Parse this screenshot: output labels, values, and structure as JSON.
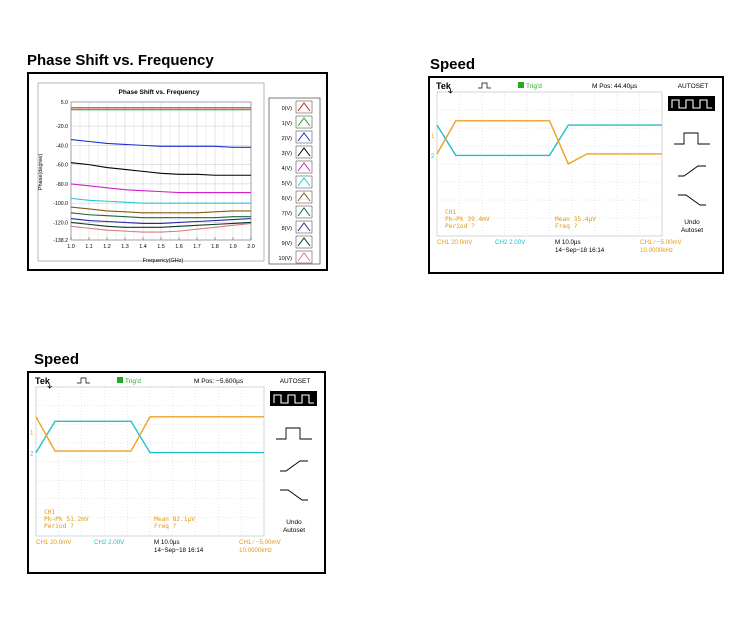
{
  "panels": {
    "phase": {
      "heading": "Phase Shift vs. Frequency"
    },
    "speed1": {
      "heading": "Speed"
    },
    "speed2": {
      "heading": "Speed"
    }
  },
  "chart_data": [
    {
      "type": "line",
      "title": "Phase Shift vs. Frequency",
      "xlabel": "Frequency(GHz)",
      "ylabel": "Phase(degree)",
      "xlim": [
        1.0,
        2.0
      ],
      "ylim": [
        -138.2,
        5.0
      ],
      "xticks": [
        "1.0",
        "1.1",
        "1.2",
        "1.3",
        "1.4",
        "1.5",
        "1.6",
        "1.7",
        "1.8",
        "1.9",
        "2.0"
      ],
      "yticks": [
        "5.0",
        "-20.0",
        "-40.0",
        "-60.0",
        "-80.0",
        "-100.0",
        "-120.0",
        "-138.2"
      ],
      "x": [
        1.0,
        1.1,
        1.2,
        1.3,
        1.4,
        1.5,
        1.6,
        1.7,
        1.8,
        1.9,
        2.0
      ],
      "legend_position": "right",
      "series": [
        {
          "name": "0(V)",
          "color": "#d62020",
          "values": [
            -1,
            -1,
            -1,
            -1,
            -1,
            -1,
            -1,
            -1,
            -1,
            -1,
            -1
          ]
        },
        {
          "name": "1(V)",
          "color": "#22aa22",
          "values": [
            -3,
            -3,
            -3,
            -3,
            -3,
            -3,
            -3,
            -3,
            -3,
            -3,
            -3
          ]
        },
        {
          "name": "2(V)",
          "color": "#1a2ed8",
          "values": [
            -34,
            -36,
            -38,
            -39,
            -40,
            -41,
            -41,
            -41,
            -41,
            -42,
            -42
          ]
        },
        {
          "name": "3(V)",
          "color": "#000000",
          "values": [
            -58,
            -60,
            -63,
            -65,
            -67,
            -69,
            -70,
            -70,
            -71,
            -71,
            -71
          ]
        },
        {
          "name": "4(V)",
          "color": "#d020d0",
          "values": [
            -80,
            -82,
            -84,
            -86,
            -87,
            -88,
            -89,
            -89,
            -89,
            -89,
            -89
          ]
        },
        {
          "name": "5(V)",
          "color": "#20c8d8",
          "values": [
            -95,
            -97,
            -98,
            -99,
            -100,
            -100,
            -100,
            -100,
            -100,
            -100,
            -100
          ]
        },
        {
          "name": "6(V)",
          "color": "#8a5a10",
          "values": [
            -104,
            -106,
            -108,
            -109,
            -110,
            -110,
            -110,
            -110,
            -109,
            -108,
            -108
          ]
        },
        {
          "name": "7(V)",
          "color": "#1a6a3a",
          "values": [
            -110,
            -112,
            -113,
            -114,
            -115,
            -115,
            -115,
            -115,
            -115,
            -114,
            -114
          ]
        },
        {
          "name": "8(V)",
          "color": "#2a2aa8",
          "values": [
            -116,
            -118,
            -119,
            -120,
            -121,
            -121,
            -120,
            -119,
            -118,
            -117,
            -116
          ]
        },
        {
          "name": "9(V)",
          "color": "#0a3a2a",
          "values": [
            -120,
            -122,
            -124,
            -125,
            -125,
            -125,
            -124,
            -123,
            -122,
            -121,
            -120
          ]
        },
        {
          "name": "10(V)",
          "color": "#e07a7a",
          "values": [
            -124,
            -126,
            -128,
            -129,
            -130,
            -130,
            -129,
            -127,
            -125,
            -123,
            -121
          ]
        }
      ]
    },
    {
      "type": "line",
      "title": "Speed",
      "series": [
        {
          "name": "1",
          "color": "#f0a020",
          "values": [
            0,
            1,
            1,
            1,
            1,
            1,
            1,
            -0.05,
            0,
            0,
            0,
            0,
            0
          ]
        },
        {
          "name": "2",
          "color": "#20c0c8",
          "values": [
            1,
            0,
            0,
            0,
            0,
            0,
            0,
            1,
            1,
            1,
            1,
            1,
            1
          ]
        }
      ],
      "scope": {
        "brand": "Tek",
        "trigger": "Trig'd",
        "mpos": "M Pos: 44.40µs",
        "autoset": "AUTOSET",
        "ch1_label": "CH1",
        "pkpk": "Pk−Pk 39.4mV",
        "period": "Period  ?",
        "mean": "Mean 35.4µV",
        "freq": "Freq  ?",
        "ch1_scale": "CH1  20.0mV",
        "ch2_scale": "CH2  2.00V",
        "timebase": "M 10.0µs",
        "date": "14−Sep−18 16:14",
        "trig_setting": "CH1  ∕  −5.00mV",
        "trig_freq": "10.0000kHz",
        "undo1": "Undo",
        "undo2": "Autoset",
        "ch1_marker": "1",
        "ch2_marker": "2"
      }
    },
    {
      "type": "line",
      "title": "Speed",
      "series": [
        {
          "name": "1",
          "color": "#f0a020",
          "values": [
            1,
            0,
            0,
            0,
            0,
            0,
            1,
            1,
            1,
            1,
            1,
            1,
            1
          ]
        },
        {
          "name": "2",
          "color": "#20c0c8",
          "values": [
            0,
            1,
            1,
            1,
            1,
            1,
            0,
            0,
            0,
            0,
            0,
            0,
            0
          ]
        }
      ],
      "scope": {
        "brand": "Tek",
        "trigger": "Trig'd",
        "mpos": "M Pos: −5.600µs",
        "autoset": "AUTOSET",
        "ch1_label": "CH1",
        "pkpk": "Pk−Pk 51.2mV",
        "period": "Period  ?",
        "mean": "Mean 82.1µV",
        "freq": "Freq  ?",
        "ch1_scale": "CH1  20.0mV",
        "ch2_scale": "CH2  2.00V",
        "timebase": "M 10.0µs",
        "date": "14−Sep−18 16:14",
        "trig_setting": "CH1  ∕  −5.00mV",
        "trig_freq": "10.0000kHz",
        "undo1": "Undo",
        "undo2": "Autoset",
        "ch1_marker": "1",
        "ch2_marker": "2"
      }
    }
  ]
}
